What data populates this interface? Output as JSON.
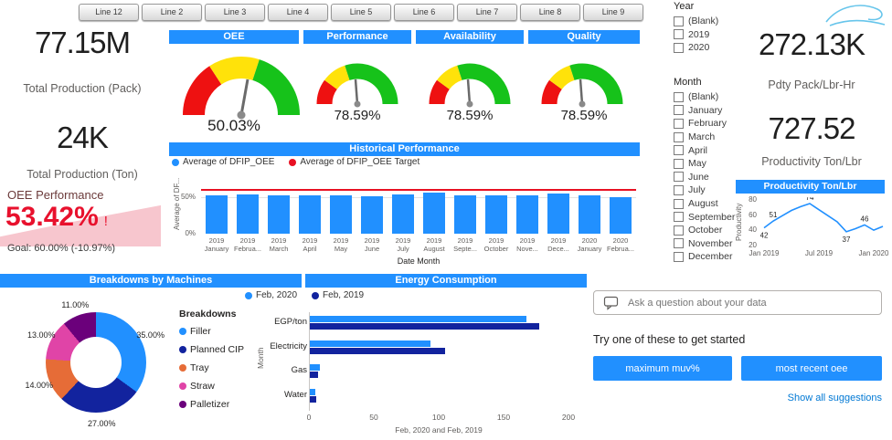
{
  "tabs": {
    "items": [
      "Line 12",
      "Line 2",
      "Line 3",
      "Line 4",
      "Line 5",
      "Line 6",
      "Line 7",
      "Line 8",
      "Line 9"
    ]
  },
  "left_kpis": {
    "pack": {
      "value": "77.15M",
      "label": "Total Production (Pack)"
    },
    "ton": {
      "value": "24K",
      "label": "Total Production (Ton)"
    },
    "oee": {
      "title": "OEE Performance",
      "value": "53.42%",
      "alert": "!",
      "goal": "Goal: 60.00% (-10.97%)"
    }
  },
  "right_kpis": {
    "pack_lbr": {
      "value": "272.13K",
      "label": "Pdty Pack/Lbr-Hr"
    },
    "ton_lbr": {
      "value": "727.52",
      "label": "Productivity Ton/Lbr"
    }
  },
  "slicers": {
    "year": {
      "title": "Year",
      "options": [
        "(Blank)",
        "2019",
        "2020"
      ]
    },
    "month": {
      "title": "Month",
      "options": [
        "(Blank)",
        "January",
        "February",
        "March",
        "April",
        "May",
        "June",
        "July",
        "August",
        "September",
        "October",
        "November",
        "December"
      ]
    }
  },
  "qna": {
    "placeholder": "Ask a question about your data",
    "prompt": "Try one of these to get started",
    "suggestions": [
      "maximum muv%",
      "most recent oee"
    ],
    "show_all": "Show all suggestions"
  },
  "colors": {
    "blue": "#2190FF",
    "navy": "#12239E",
    "red": "#E81123",
    "orange": "#E66C37",
    "pink": "#E044A7",
    "purple": "#6B007B",
    "gauge_red": "#EE1111",
    "gauge_yellow": "#FFE20A",
    "gauge_green": "#16C21A",
    "header": "#2190FF",
    "kpi_red": "#E8112D",
    "link": "#0078D4"
  },
  "chart_data": [
    {
      "id": "gauges",
      "type": "gauge",
      "items": [
        {
          "title": "OEE",
          "value": 50.03,
          "display": "50.03%"
        },
        {
          "title": "Performance",
          "value": 78.59,
          "display": "78.59%"
        },
        {
          "title": "Availability",
          "value": 78.59,
          "display": "78.59%"
        },
        {
          "title": "Quality",
          "value": 78.59,
          "display": "78.59%"
        }
      ]
    },
    {
      "id": "historical",
      "type": "bar",
      "title": "Historical Performance",
      "legend": [
        {
          "label": "Average of DFIP_OEE",
          "color_key": "blue"
        },
        {
          "label": "Average of DFIP_OEE Target",
          "color_key": "red"
        }
      ],
      "categories": [
        {
          "year": "2019",
          "month": "January"
        },
        {
          "year": "2019",
          "month": "Februa..."
        },
        {
          "year": "2019",
          "month": "March"
        },
        {
          "year": "2019",
          "month": "April"
        },
        {
          "year": "2019",
          "month": "May"
        },
        {
          "year": "2019",
          "month": "June"
        },
        {
          "year": "2019",
          "month": "July"
        },
        {
          "year": "2019",
          "month": "August"
        },
        {
          "year": "2019",
          "month": "Septe..."
        },
        {
          "year": "2019",
          "month": "October"
        },
        {
          "year": "2019",
          "month": "Nove..."
        },
        {
          "year": "2019",
          "month": "Dece..."
        },
        {
          "year": "2020",
          "month": "January"
        },
        {
          "year": "2020",
          "month": "Februa..."
        }
      ],
      "values": [
        53,
        54,
        52,
        53,
        52,
        51,
        54,
        56,
        53,
        52,
        53,
        55,
        52,
        50
      ],
      "target": {
        "name": "Average of DFIP_OEE Target",
        "value": 60
      },
      "ylim": [
        0,
        80
      ],
      "y_ticks": [
        {
          "value": 50,
          "label": "50%"
        },
        {
          "value": 0,
          "label": "0%"
        }
      ],
      "xlabel": "Date Month",
      "ylabel": "Average of DF..."
    },
    {
      "id": "productivity",
      "type": "line",
      "title": "Productivity Ton/Lbr",
      "ylabel": "Productivity",
      "ylim": [
        20,
        80
      ],
      "y_ticks": [
        20,
        40,
        60,
        80
      ],
      "values": [
        42,
        51,
        58,
        65,
        70,
        74,
        66,
        58,
        50,
        37,
        41,
        46,
        39,
        44
      ],
      "point_labels": [
        {
          "index": 0,
          "text": "42",
          "pos": "below"
        },
        {
          "index": 1,
          "text": "51",
          "pos": "above"
        },
        {
          "index": 5,
          "text": "74",
          "pos": "above"
        },
        {
          "index": 9,
          "text": "37",
          "pos": "below"
        },
        {
          "index": 11,
          "text": "46",
          "pos": "above"
        }
      ],
      "x_ticks": [
        {
          "label": "Jan 2019",
          "index": 0
        },
        {
          "label": "Jul 2019",
          "index": 6
        },
        {
          "label": "Jan 2020",
          "index": 12
        }
      ]
    },
    {
      "id": "breakdowns",
      "type": "pie",
      "title": "Breakdowns by Machines",
      "legend_title": "Breakdowns",
      "labels": [
        "Filler",
        "Planned CIP",
        "Tray",
        "Straw",
        "Palletizer"
      ],
      "values": [
        35,
        27,
        14,
        13,
        11
      ],
      "display": [
        "35.00%",
        "27.00%",
        "14.00%",
        "13.00%",
        "11.00%"
      ],
      "color_keys": [
        "blue",
        "navy",
        "orange",
        "pink",
        "purple"
      ]
    },
    {
      "id": "energy",
      "type": "bar",
      "orientation": "horizontal",
      "title": "Energy Consumption",
      "ylabel": "Month",
      "caption": "Feb, 2020 and Feb, 2019",
      "categories": [
        "EGP/ton",
        "Electricity",
        "Gas",
        "Water"
      ],
      "series": [
        {
          "name": "Feb, 2020",
          "color_key": "blue",
          "values": [
            167,
            93,
            8,
            4
          ]
        },
        {
          "name": "Feb, 2019",
          "color_key": "navy",
          "values": [
            177,
            104,
            6,
            5
          ]
        }
      ],
      "xlim": [
        0,
        200
      ],
      "x_ticks": [
        0,
        50,
        100,
        150,
        200
      ]
    }
  ]
}
